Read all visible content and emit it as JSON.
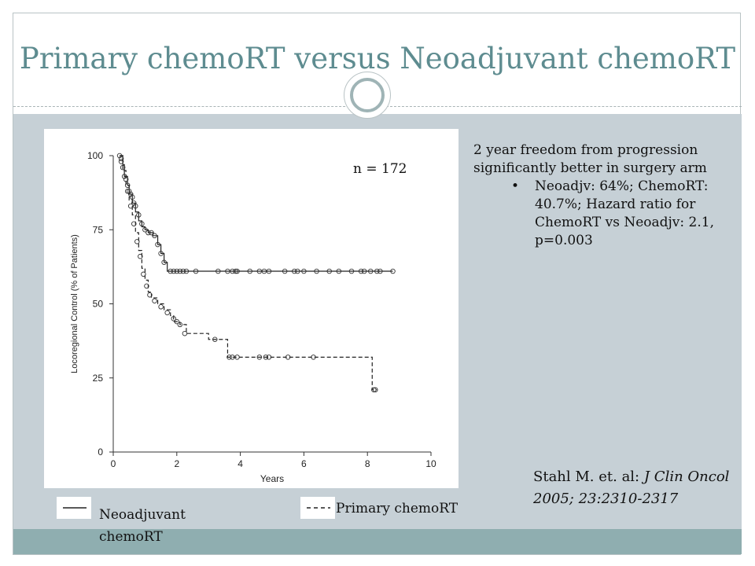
{
  "slide": {
    "title": "Primary chemoRT versus Neoadjuvant chemoRT",
    "n_label": "n = 172",
    "summary": {
      "text": "2 year freedom from progression significantly better in surgery arm",
      "bullet": "Neoadjv: 64%; ChemoRT: 40.7%; Hazard ratio for ChemoRT vs Neoadjv: 2.1, p=0.003"
    },
    "citation": {
      "authors": "Stahl M. et. al:",
      "journal": "J Clin Oncol 2005; 23:2310-2317"
    },
    "legend": {
      "neoadjuvant": "Neoadjuvant chemoRT",
      "primary": "Primary chemoRT",
      "solid_symbol": "——",
      "dashed_symbol": "- - -"
    },
    "colors": {
      "title": "#5e8c90",
      "band": "#c6d0d6",
      "footer": "#8faeb0"
    }
  },
  "chart_data": {
    "type": "line",
    "title": "",
    "xlabel": "Years",
    "ylabel": "Locoregional Control (% of Patients)",
    "xlim": [
      0,
      10
    ],
    "ylim": [
      0,
      100
    ],
    "xticks": [
      0,
      2,
      4,
      6,
      8,
      10
    ],
    "yticks": [
      0,
      25,
      50,
      75,
      100
    ],
    "grid": false,
    "series": [
      {
        "name": "Neoadjuvant chemoRT",
        "style": "solid",
        "steps": [
          [
            0.2,
            100
          ],
          [
            0.3,
            97
          ],
          [
            0.35,
            93
          ],
          [
            0.45,
            90
          ],
          [
            0.5,
            87
          ],
          [
            0.6,
            84
          ],
          [
            0.7,
            81
          ],
          [
            0.8,
            78
          ],
          [
            0.9,
            76
          ],
          [
            1.0,
            75
          ],
          [
            1.1,
            74
          ],
          [
            1.25,
            73
          ],
          [
            1.4,
            70
          ],
          [
            1.5,
            67
          ],
          [
            1.6,
            64
          ],
          [
            1.7,
            61
          ],
          [
            8.8,
            61
          ]
        ],
        "censored": [
          [
            0.2,
            100
          ],
          [
            0.25,
            99
          ],
          [
            0.3,
            96
          ],
          [
            0.4,
            92
          ],
          [
            0.45,
            90
          ],
          [
            0.5,
            88
          ],
          [
            0.55,
            87
          ],
          [
            0.6,
            86
          ],
          [
            0.65,
            84
          ],
          [
            0.7,
            83
          ],
          [
            0.8,
            80
          ],
          [
            0.9,
            77
          ],
          [
            1.0,
            75
          ],
          [
            1.1,
            74
          ],
          [
            1.2,
            74
          ],
          [
            1.3,
            73
          ],
          [
            1.4,
            70
          ],
          [
            1.5,
            67
          ],
          [
            1.6,
            64
          ],
          [
            1.8,
            61
          ],
          [
            1.9,
            61
          ],
          [
            2.0,
            61
          ],
          [
            2.1,
            61
          ],
          [
            2.2,
            61
          ],
          [
            2.3,
            61
          ],
          [
            2.6,
            61
          ],
          [
            3.3,
            61
          ],
          [
            3.6,
            61
          ],
          [
            3.75,
            61
          ],
          [
            3.85,
            61
          ],
          [
            3.9,
            61
          ],
          [
            4.3,
            61
          ],
          [
            4.6,
            61
          ],
          [
            4.75,
            61
          ],
          [
            4.9,
            61
          ],
          [
            5.4,
            61
          ],
          [
            5.7,
            61
          ],
          [
            5.8,
            61
          ],
          [
            6.0,
            61
          ],
          [
            6.4,
            61
          ],
          [
            6.8,
            61
          ],
          [
            7.1,
            61
          ],
          [
            7.5,
            61
          ],
          [
            7.8,
            61
          ],
          [
            7.9,
            61
          ],
          [
            8.1,
            61
          ],
          [
            8.3,
            61
          ],
          [
            8.4,
            61
          ],
          [
            8.8,
            61
          ]
        ]
      },
      {
        "name": "Primary chemoRT",
        "style": "dashed",
        "steps": [
          [
            0.2,
            100
          ],
          [
            0.3,
            95
          ],
          [
            0.4,
            90
          ],
          [
            0.5,
            85
          ],
          [
            0.6,
            80
          ],
          [
            0.7,
            74
          ],
          [
            0.8,
            68
          ],
          [
            0.9,
            62
          ],
          [
            1.0,
            58
          ],
          [
            1.1,
            54
          ],
          [
            1.2,
            52
          ],
          [
            1.4,
            50
          ],
          [
            1.6,
            48
          ],
          [
            1.8,
            46
          ],
          [
            1.9,
            44
          ],
          [
            2.1,
            43
          ],
          [
            2.3,
            40
          ],
          [
            2.6,
            40
          ],
          [
            2.8,
            40
          ],
          [
            3.0,
            38
          ],
          [
            3.2,
            38
          ],
          [
            3.5,
            38
          ],
          [
            3.6,
            32
          ],
          [
            8.1,
            32
          ],
          [
            8.15,
            21
          ],
          [
            8.3,
            21
          ]
        ],
        "censored": [
          [
            0.25,
            98
          ],
          [
            0.35,
            93
          ],
          [
            0.45,
            88
          ],
          [
            0.55,
            83
          ],
          [
            0.65,
            77
          ],
          [
            0.75,
            71
          ],
          [
            0.85,
            66
          ],
          [
            0.95,
            60
          ],
          [
            1.05,
            56
          ],
          [
            1.15,
            53
          ],
          [
            1.3,
            51
          ],
          [
            1.5,
            49
          ],
          [
            1.7,
            47
          ],
          [
            1.9,
            45
          ],
          [
            2.0,
            44
          ],
          [
            2.1,
            43
          ],
          [
            2.25,
            40
          ],
          [
            3.2,
            38
          ],
          [
            3.65,
            32
          ],
          [
            3.75,
            32
          ],
          [
            3.9,
            32
          ],
          [
            4.6,
            32
          ],
          [
            4.8,
            32
          ],
          [
            4.9,
            32
          ],
          [
            5.5,
            32
          ],
          [
            6.3,
            32
          ],
          [
            8.2,
            21
          ],
          [
            8.25,
            21
          ]
        ]
      }
    ]
  }
}
